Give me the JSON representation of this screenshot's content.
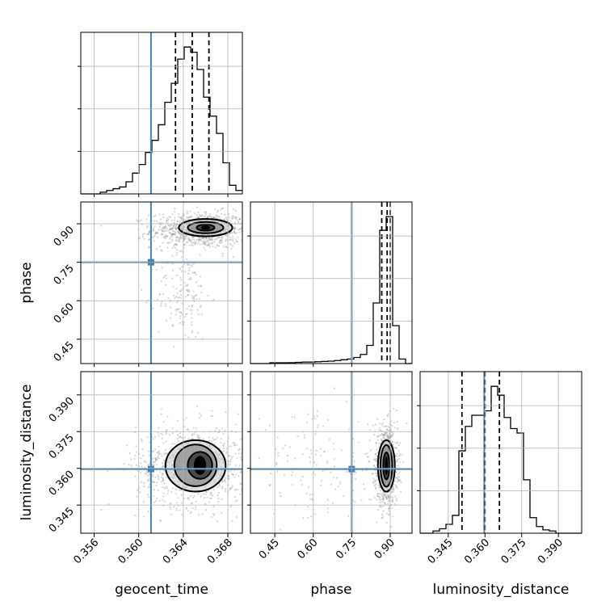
{
  "chart_data": {
    "type": "corner",
    "params": [
      "geocent_time",
      "phase",
      "luminosity_distance"
    ],
    "axis_labels": {
      "geocent_time": "geocent_time",
      "phase": "phase",
      "luminosity_distance": "luminosity_distance"
    },
    "ranges": {
      "geocent_time": [
        0.3548,
        0.3693
      ],
      "phase": [
        0.355,
        0.985
      ],
      "luminosity_distance": [
        0.3335,
        0.3995
      ]
    },
    "ticks": {
      "geocent_time": {
        "values": [
          0.356,
          0.36,
          0.364,
          0.368
        ],
        "labels": [
          "0.356",
          "0.360",
          "0.364",
          "0.368"
        ]
      },
      "phase": {
        "values": [
          0.45,
          0.6,
          0.75,
          0.9
        ],
        "labels": [
          "0.45",
          "0.60",
          "0.75",
          "0.90"
        ]
      },
      "luminosity_distance": {
        "values": [
          0.345,
          0.36,
          0.375,
          0.39
        ],
        "labels": [
          "0.345",
          "0.360",
          "0.375",
          "0.390"
        ]
      }
    },
    "truths": {
      "geocent_time": 0.3611,
      "phase": 0.75,
      "luminosity_distance": 0.3597
    },
    "truth_color": "#4682b4",
    "quantiles": {
      "geocent_time": [
        0.3633,
        0.3648,
        0.3663
      ],
      "phase": [
        0.867,
        0.888,
        0.9
      ],
      "luminosity_distance": [
        0.3506,
        0.36,
        0.3659
      ]
    },
    "histograms": {
      "geocent_time": {
        "edges_range": [
          0.3548,
          0.3693
        ],
        "counts": [
          0,
          0,
          0,
          1,
          2,
          3,
          4,
          7,
          12,
          17,
          24,
          31,
          40,
          53,
          64,
          78,
          85,
          82,
          72,
          56,
          45,
          35,
          18,
          5,
          2
        ]
      },
      "phase": {
        "edges_range": [
          0.355,
          0.985
        ],
        "counts": [
          0,
          0,
          0,
          0.5,
          0.5,
          0.5,
          0.6,
          0.8,
          1,
          1,
          1.2,
          1.4,
          1.6,
          2,
          2.5,
          3,
          4,
          6,
          12,
          40,
          88,
          97,
          25,
          3,
          0
        ]
      },
      "luminosity_distance": {
        "edges_range": [
          0.3335,
          0.3995
        ],
        "counts": [
          0,
          0,
          1,
          2,
          4,
          8,
          37,
          48,
          53,
          53,
          55,
          66,
          62,
          52,
          47,
          45,
          24,
          7,
          3,
          1.5,
          1,
          0,
          0,
          0,
          0
        ]
      }
    },
    "pairs": [
      {
        "x": "geocent_time",
        "y": "phase",
        "scatter_centers": [
          [
            0.3655,
            0.875
          ],
          [
            0.364,
            0.62
          ]
        ],
        "scatter_spread": [
          [
            0.0022,
            0.035
          ],
          [
            0.0012,
            0.09
          ]
        ],
        "contours": [
          {
            "cx": 0.366,
            "cy": 0.885,
            "rx": 0.0024,
            "ry": 0.034
          },
          {
            "cx": 0.366,
            "cy": 0.885,
            "rx": 0.0016,
            "ry": 0.022
          },
          {
            "cx": 0.366,
            "cy": 0.885,
            "rx": 0.0008,
            "ry": 0.012
          }
        ]
      },
      {
        "x": "geocent_time",
        "y": "luminosity_distance",
        "scatter_centers": [
          [
            0.365,
            0.361
          ]
        ],
        "scatter_spread": [
          [
            0.0026,
            0.0085
          ]
        ],
        "contours": [
          {
            "cx": 0.3651,
            "cy": 0.361,
            "rx": 0.0027,
            "ry": 0.0105
          },
          {
            "cx": 0.3651,
            "cy": 0.3612,
            "rx": 0.0019,
            "ry": 0.0085
          },
          {
            "cx": 0.3655,
            "cy": 0.3612,
            "rx": 0.0011,
            "ry": 0.0055
          }
        ]
      },
      {
        "x": "phase",
        "y": "luminosity_distance",
        "scatter_centers": [
          [
            0.885,
            0.361
          ],
          [
            0.63,
            0.36
          ]
        ],
        "scatter_spread": [
          [
            0.022,
            0.008
          ],
          [
            0.14,
            0.011
          ]
        ],
        "contours": [
          {
            "cx": 0.885,
            "cy": 0.361,
            "rx": 0.033,
            "ry": 0.0105
          },
          {
            "cx": 0.885,
            "cy": 0.361,
            "rx": 0.023,
            "ry": 0.0085
          },
          {
            "cx": 0.885,
            "cy": 0.361,
            "rx": 0.012,
            "ry": 0.0055
          }
        ]
      }
    ]
  }
}
